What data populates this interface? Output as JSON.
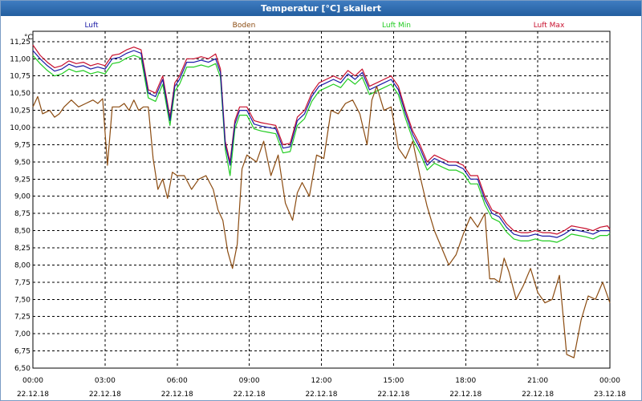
{
  "window": {
    "title": "Temperatur [°C] skaliert"
  },
  "chart_data": {
    "type": "line",
    "title": "Temperatur [°C] skaliert",
    "ylabel": "°C",
    "ylim": [
      6.5,
      11.4
    ],
    "yticks": [
      6.5,
      6.75,
      7.0,
      7.25,
      7.5,
      7.75,
      8.0,
      8.25,
      8.5,
      8.75,
      9.0,
      9.25,
      9.5,
      9.75,
      10.0,
      10.25,
      10.5,
      10.75,
      11.0,
      11.25
    ],
    "ytick_labels": [
      "6,50",
      "6,75",
      "7,00",
      "7,25",
      "7,50",
      "7,75",
      "8,00",
      "8,25",
      "8,50",
      "8,75",
      "9,00",
      "9,25",
      "9,50",
      "9,75",
      "10,00",
      "10,25",
      "10,50",
      "10,75",
      "11,00",
      "11,25"
    ],
    "xlim": [
      0,
      24
    ],
    "xticks": [
      0,
      3,
      6,
      9,
      12,
      15,
      18,
      21,
      24
    ],
    "xtick_times": [
      "00:00",
      "03:00",
      "06:00",
      "09:00",
      "12:00",
      "15:00",
      "18:00",
      "21:00",
      "00:00"
    ],
    "xtick_dates": [
      "22.12.18",
      "22.12.18",
      "22.12.18",
      "22.12.18",
      "22.12.18",
      "22.12.18",
      "22.12.18",
      "22.12.18",
      "23.12.18"
    ],
    "grid": true,
    "series": [
      {
        "name": "Luft",
        "color": "#1a1aa6",
        "x": [
          0,
          0.3,
          0.6,
          0.9,
          1.2,
          1.5,
          1.8,
          2.1,
          2.4,
          2.7,
          3.0,
          3.3,
          3.6,
          3.9,
          4.2,
          4.5,
          4.8,
          5.1,
          5.4,
          5.7,
          5.9,
          6.1,
          6.4,
          6.7,
          7.0,
          7.3,
          7.6,
          7.8,
          8.0,
          8.2,
          8.4,
          8.6,
          8.9,
          9.2,
          9.5,
          9.8,
          10.1,
          10.4,
          10.7,
          11.0,
          11.3,
          11.6,
          11.9,
          12.2,
          12.5,
          12.8,
          13.1,
          13.4,
          13.7,
          14.0,
          14.3,
          14.6,
          14.9,
          15.2,
          15.5,
          15.8,
          16.1,
          16.4,
          16.7,
          17.0,
          17.3,
          17.6,
          17.9,
          18.2,
          18.5,
          18.8,
          19.1,
          19.4,
          19.7,
          20.0,
          20.3,
          20.6,
          20.9,
          21.2,
          21.5,
          21.8,
          22.1,
          22.4,
          22.7,
          23.0,
          23.3,
          23.6,
          23.9,
          24.0
        ],
        "values": [
          11.12,
          11.0,
          10.9,
          10.82,
          10.85,
          10.92,
          10.88,
          10.9,
          10.85,
          10.88,
          10.85,
          11.0,
          11.02,
          11.08,
          11.12,
          11.08,
          10.5,
          10.45,
          10.7,
          10.1,
          10.6,
          10.7,
          10.95,
          10.95,
          10.98,
          10.95,
          11.0,
          10.8,
          9.75,
          9.45,
          10.05,
          10.25,
          10.25,
          10.05,
          10.02,
          10.0,
          9.98,
          9.7,
          9.72,
          10.1,
          10.2,
          10.45,
          10.6,
          10.65,
          10.7,
          10.65,
          10.78,
          10.7,
          10.8,
          10.55,
          10.6,
          10.65,
          10.7,
          10.55,
          10.2,
          9.9,
          9.7,
          9.45,
          9.55,
          9.5,
          9.45,
          9.45,
          9.4,
          9.25,
          9.25,
          8.95,
          8.75,
          8.7,
          8.55,
          8.45,
          8.42,
          8.42,
          8.45,
          8.42,
          8.42,
          8.4,
          8.45,
          8.52,
          8.5,
          8.48,
          8.45,
          8.5,
          8.5,
          8.5
        ]
      },
      {
        "name": "Boden",
        "color": "#8b4b10",
        "x": [
          0,
          0.2,
          0.4,
          0.7,
          0.9,
          1.1,
          1.3,
          1.6,
          1.9,
          2.2,
          2.5,
          2.7,
          2.9,
          3.1,
          3.3,
          3.6,
          3.8,
          4.0,
          4.2,
          4.4,
          4.6,
          4.8,
          5.0,
          5.2,
          5.4,
          5.6,
          5.8,
          6.0,
          6.3,
          6.6,
          6.9,
          7.2,
          7.5,
          7.7,
          7.9,
          8.1,
          8.3,
          8.5,
          8.7,
          8.9,
          9.1,
          9.3,
          9.6,
          9.9,
          10.2,
          10.5,
          10.8,
          11.0,
          11.2,
          11.5,
          11.8,
          12.1,
          12.4,
          12.7,
          13.0,
          13.3,
          13.6,
          13.9,
          14.1,
          14.3,
          14.6,
          14.9,
          15.2,
          15.5,
          15.8,
          16.1,
          16.4,
          16.7,
          17.0,
          17.3,
          17.6,
          17.9,
          18.2,
          18.5,
          18.8,
          19.0,
          19.2,
          19.4,
          19.6,
          19.8,
          20.1,
          20.4,
          20.7,
          21.0,
          21.3,
          21.6,
          21.9,
          22.2,
          22.5,
          22.8,
          23.1,
          23.4,
          23.7,
          24.0
        ],
        "values": [
          10.3,
          10.45,
          10.2,
          10.25,
          10.15,
          10.2,
          10.3,
          10.4,
          10.3,
          10.35,
          10.4,
          10.35,
          10.42,
          9.45,
          10.3,
          10.3,
          10.35,
          10.25,
          10.4,
          10.25,
          10.3,
          10.3,
          9.55,
          9.1,
          9.25,
          8.97,
          9.35,
          9.3,
          9.3,
          9.1,
          9.25,
          9.3,
          9.1,
          8.8,
          8.65,
          8.2,
          7.95,
          8.3,
          9.4,
          9.6,
          9.55,
          9.5,
          9.8,
          9.3,
          9.6,
          8.9,
          8.65,
          9.05,
          9.2,
          9.0,
          9.6,
          9.55,
          10.25,
          10.2,
          10.35,
          10.4,
          10.2,
          9.75,
          10.4,
          10.6,
          10.25,
          10.3,
          9.7,
          9.55,
          9.8,
          9.3,
          8.85,
          8.5,
          8.25,
          8.0,
          8.15,
          8.45,
          8.7,
          8.55,
          8.75,
          7.8,
          7.8,
          7.75,
          8.1,
          7.9,
          7.5,
          7.7,
          7.95,
          7.6,
          7.45,
          7.5,
          7.85,
          6.7,
          6.65,
          7.2,
          7.55,
          7.5,
          7.75,
          7.45
        ]
      },
      {
        "name": "Luft Min",
        "color": "#22cc22",
        "x": [
          0,
          0.3,
          0.6,
          0.9,
          1.2,
          1.5,
          1.8,
          2.1,
          2.4,
          2.7,
          3.0,
          3.3,
          3.6,
          3.9,
          4.2,
          4.5,
          4.8,
          5.1,
          5.4,
          5.7,
          5.9,
          6.1,
          6.4,
          6.7,
          7.0,
          7.3,
          7.6,
          7.8,
          8.0,
          8.2,
          8.4,
          8.6,
          8.9,
          9.2,
          9.5,
          9.8,
          10.1,
          10.4,
          10.7,
          11.0,
          11.3,
          11.6,
          11.9,
          12.2,
          12.5,
          12.8,
          13.1,
          13.4,
          13.7,
          14.0,
          14.3,
          14.6,
          14.9,
          15.2,
          15.5,
          15.8,
          16.1,
          16.4,
          16.7,
          17.0,
          17.3,
          17.6,
          17.9,
          18.2,
          18.5,
          18.8,
          19.1,
          19.4,
          19.7,
          20.0,
          20.3,
          20.6,
          20.9,
          21.2,
          21.5,
          21.8,
          22.1,
          22.4,
          22.7,
          23.0,
          23.3,
          23.6,
          23.9,
          24.0
        ],
        "values": [
          11.05,
          10.93,
          10.83,
          10.75,
          10.78,
          10.85,
          10.81,
          10.83,
          10.78,
          10.81,
          10.78,
          10.93,
          10.95,
          11.01,
          11.05,
          11.01,
          10.43,
          10.38,
          10.63,
          10.03,
          10.53,
          10.63,
          10.88,
          10.88,
          10.91,
          10.88,
          10.93,
          10.73,
          9.68,
          9.3,
          9.98,
          10.18,
          10.18,
          9.98,
          9.95,
          9.93,
          9.91,
          9.63,
          9.65,
          10.03,
          10.13,
          10.38,
          10.53,
          10.58,
          10.63,
          10.58,
          10.71,
          10.63,
          10.73,
          10.48,
          10.53,
          10.58,
          10.63,
          10.48,
          10.13,
          9.83,
          9.63,
          9.38,
          9.48,
          9.43,
          9.38,
          9.38,
          9.33,
          9.18,
          9.18,
          8.88,
          8.68,
          8.63,
          8.48,
          8.38,
          8.35,
          8.35,
          8.38,
          8.35,
          8.35,
          8.33,
          8.38,
          8.45,
          8.43,
          8.41,
          8.38,
          8.43,
          8.43,
          8.46
        ]
      },
      {
        "name": "Luft Max",
        "color": "#c8102e",
        "x": [
          0,
          0.3,
          0.6,
          0.9,
          1.2,
          1.5,
          1.8,
          2.1,
          2.4,
          2.7,
          3.0,
          3.3,
          3.6,
          3.9,
          4.2,
          4.5,
          4.8,
          5.1,
          5.4,
          5.7,
          5.9,
          6.1,
          6.4,
          6.7,
          7.0,
          7.3,
          7.6,
          7.8,
          8.0,
          8.2,
          8.4,
          8.6,
          8.9,
          9.2,
          9.5,
          9.8,
          10.1,
          10.4,
          10.7,
          11.0,
          11.3,
          11.6,
          11.9,
          12.2,
          12.5,
          12.8,
          13.1,
          13.4,
          13.7,
          14.0,
          14.3,
          14.6,
          14.9,
          15.2,
          15.5,
          15.8,
          16.1,
          16.4,
          16.7,
          17.0,
          17.3,
          17.6,
          17.9,
          18.2,
          18.5,
          18.8,
          19.1,
          19.4,
          19.7,
          20.0,
          20.3,
          20.6,
          20.9,
          21.2,
          21.5,
          21.8,
          22.1,
          22.4,
          22.7,
          23.0,
          23.3,
          23.6,
          23.9,
          24.0
        ],
        "values": [
          11.2,
          11.05,
          10.95,
          10.87,
          10.9,
          10.97,
          10.93,
          10.95,
          10.9,
          10.93,
          10.9,
          11.05,
          11.07,
          11.13,
          11.17,
          11.13,
          10.55,
          10.5,
          10.75,
          10.15,
          10.65,
          10.75,
          11.0,
          11.0,
          11.03,
          11.0,
          11.07,
          10.85,
          9.8,
          9.5,
          10.1,
          10.3,
          10.3,
          10.1,
          10.07,
          10.05,
          10.03,
          9.75,
          9.77,
          10.15,
          10.25,
          10.5,
          10.65,
          10.7,
          10.75,
          10.7,
          10.83,
          10.75,
          10.85,
          10.6,
          10.65,
          10.7,
          10.75,
          10.6,
          10.25,
          9.95,
          9.75,
          9.5,
          9.6,
          9.55,
          9.5,
          9.5,
          9.45,
          9.3,
          9.3,
          9.0,
          8.8,
          8.75,
          8.6,
          8.5,
          8.47,
          8.47,
          8.5,
          8.47,
          8.47,
          8.45,
          8.5,
          8.57,
          8.55,
          8.53,
          8.5,
          8.55,
          8.57,
          8.52
        ]
      }
    ]
  }
}
